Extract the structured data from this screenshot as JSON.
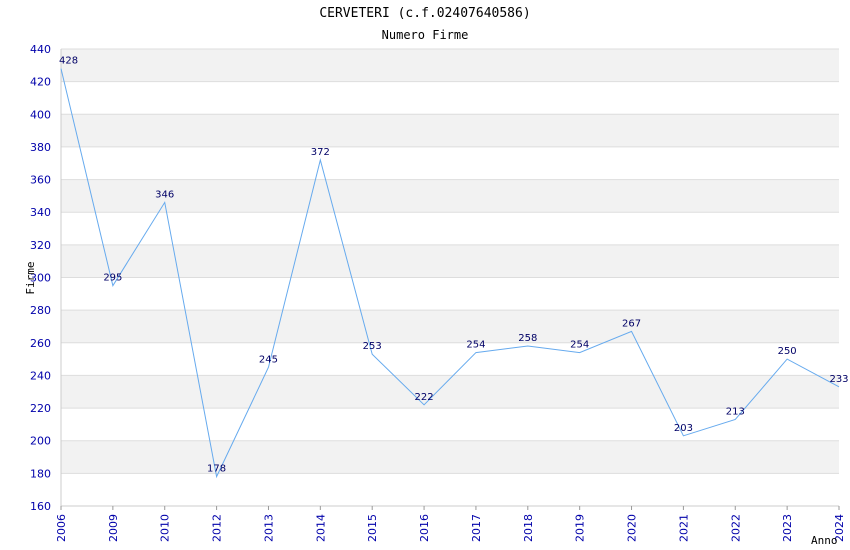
{
  "chart_data": {
    "type": "line",
    "title": "CERVETERI (c.f.02407640586)",
    "subtitle": "Numero Firme",
    "xlabel": "Anno",
    "ylabel": "Firme",
    "categories": [
      "2006",
      "2009",
      "2010",
      "2012",
      "2013",
      "2014",
      "2015",
      "2016",
      "2017",
      "2018",
      "2019",
      "2020",
      "2021",
      "2022",
      "2023",
      "2024"
    ],
    "series": [
      {
        "values": [
          428,
          295,
          346,
          178,
          245,
          372,
          253,
          222,
          254,
          258,
          254,
          267,
          203,
          213,
          250,
          233
        ]
      }
    ],
    "ylim": [
      160,
      440
    ],
    "yticks": [
      160,
      180,
      200,
      220,
      240,
      260,
      280,
      300,
      320,
      340,
      360,
      380,
      400,
      420,
      440
    ],
    "grid": true,
    "colors": {
      "line": "#66aaee",
      "band": "#f2f2f2",
      "tick": "#0000aa",
      "label": "#000066"
    }
  }
}
